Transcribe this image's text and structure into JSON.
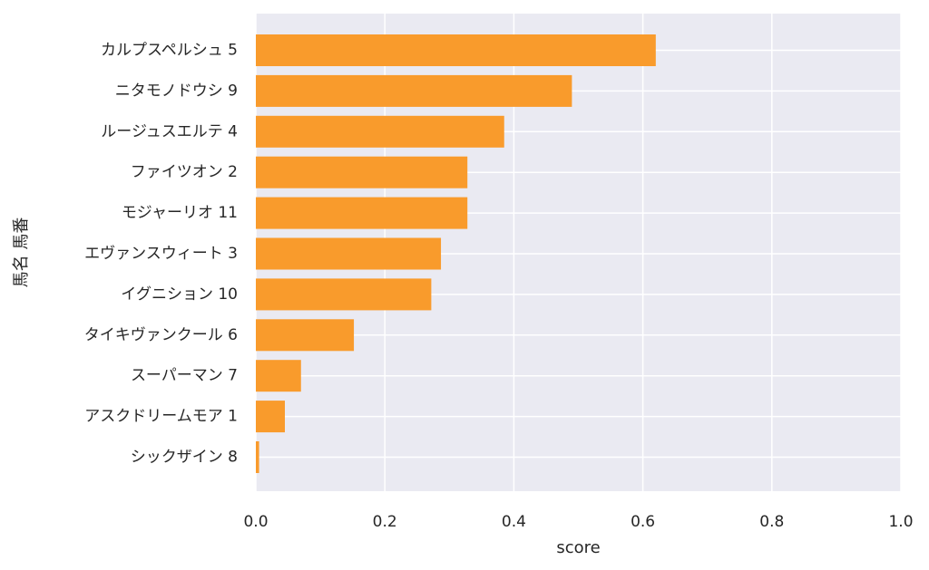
{
  "chart_data": {
    "type": "bar",
    "orientation": "horizontal",
    "categories": [
      "カルプスペルシュ 5",
      "ニタモノドウシ 9",
      "ルージュスエルテ 4",
      "ファイツオン 2",
      "モジャーリオ 11",
      "エヴァンスウィート 3",
      "イグニション 10",
      "タイキヴァンクール 6",
      "スーパーマン 7",
      "アスクドリームモア 1",
      "シックザイン 8"
    ],
    "values": [
      0.62,
      0.49,
      0.385,
      0.328,
      0.328,
      0.287,
      0.272,
      0.152,
      0.07,
      0.045,
      0.005
    ],
    "xlabel": "score",
    "ylabel": "馬名 馬番",
    "xlim": [
      0,
      1.0
    ],
    "xticks": [
      "0.0",
      "0.2",
      "0.4",
      "0.6",
      "0.8",
      "1.0"
    ],
    "grid": true,
    "colors": {
      "bar": "#f99b2c",
      "plot_background": "#eaeaf2",
      "grid": "#ffffff",
      "text": "#262626"
    }
  }
}
